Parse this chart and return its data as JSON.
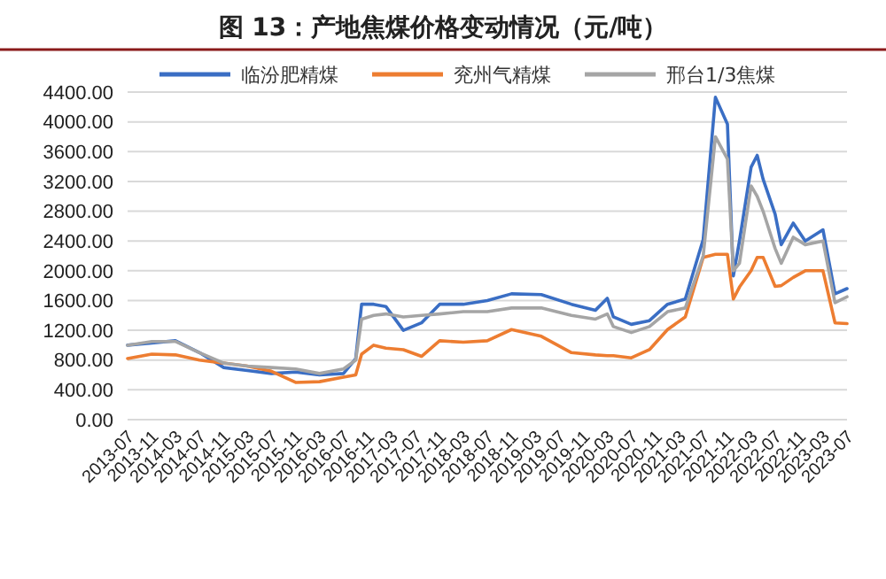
{
  "chart_data": {
    "type": "line",
    "title": "图 13：产地焦煤价格变动情况（元/吨）",
    "x": [
      "2013-07",
      "2013-11",
      "2014-03",
      "2014-07",
      "2014-11",
      "2015-03",
      "2015-07",
      "2015-11",
      "2016-03",
      "2016-07",
      "2016-09",
      "2016-10",
      "2016-12",
      "2017-02",
      "2017-05",
      "2017-08",
      "2017-11",
      "2018-03",
      "2018-07",
      "2018-11",
      "2019-04",
      "2019-09",
      "2020-01",
      "2020-03",
      "2020-04",
      "2020-07",
      "2020-10",
      "2021-01",
      "2021-04",
      "2021-07",
      "2021-09",
      "2021-11",
      "2021-12",
      "2022-01",
      "2022-03",
      "2022-04",
      "2022-05",
      "2022-07",
      "2022-08",
      "2022-10",
      "2022-12",
      "2023-03",
      "2023-05",
      "2023-07"
    ],
    "series": [
      {
        "name": "临汾肥精煤",
        "color": "#3a6ec4",
        "values": [
          1000,
          1030,
          1060,
          900,
          700,
          660,
          620,
          640,
          600,
          620,
          820,
          1550,
          1550,
          1520,
          1200,
          1300,
          1550,
          1550,
          1600,
          1690,
          1680,
          1550,
          1470,
          1630,
          1380,
          1280,
          1330,
          1550,
          1620,
          2420,
          4330,
          3970,
          1930,
          2400,
          3390,
          3550,
          3230,
          2760,
          2350,
          2640,
          2400,
          2550,
          1690,
          1760
        ]
      },
      {
        "name": "兖州气精煤",
        "color": "#ed7d31",
        "values": [
          820,
          880,
          870,
          800,
          760,
          720,
          650,
          500,
          510,
          570,
          600,
          880,
          1000,
          960,
          940,
          850,
          1060,
          1040,
          1060,
          1210,
          1120,
          900,
          870,
          860,
          860,
          830,
          940,
          1210,
          1380,
          2180,
          2220,
          2220,
          1620,
          1780,
          2000,
          2180,
          2180,
          1790,
          1800,
          1910,
          2000,
          2000,
          1300,
          1290
        ]
      },
      {
        "name": "邢台1/3焦煤",
        "color": "#a5a5a5",
        "values": [
          1000,
          1050,
          1050,
          900,
          760,
          720,
          700,
          680,
          620,
          680,
          800,
          1350,
          1400,
          1420,
          1380,
          1400,
          1420,
          1450,
          1450,
          1500,
          1500,
          1400,
          1350,
          1420,
          1250,
          1170,
          1250,
          1450,
          1500,
          2200,
          3800,
          3500,
          2000,
          2100,
          3140,
          3000,
          2800,
          2300,
          2100,
          2450,
          2350,
          2400,
          1570,
          1650
        ]
      }
    ],
    "xlim": [
      "2013-07",
      "2023-07"
    ],
    "xticks": [
      "2013-07",
      "2013-11",
      "2014-03",
      "2014-07",
      "2014-11",
      "2015-03",
      "2015-07",
      "2015-11",
      "2016-03",
      "2016-07",
      "2016-11",
      "2017-03",
      "2017-07",
      "2017-11",
      "2018-03",
      "2018-07",
      "2018-11",
      "2019-03",
      "2019-07",
      "2019-11",
      "2020-03",
      "2020-07",
      "2020-11",
      "2021-03",
      "2021-07",
      "2021-11",
      "2022-03",
      "2022-07",
      "2022-11",
      "2023-03",
      "2023-07"
    ],
    "ylim": [
      0,
      4400
    ],
    "yticks": [
      {
        "value": 0,
        "label": "0.00"
      },
      {
        "value": 400,
        "label": "400.00"
      },
      {
        "value": 800,
        "label": "800.00"
      },
      {
        "value": 1200,
        "label": "1200.00"
      },
      {
        "value": 1600,
        "label": "1600.00"
      },
      {
        "value": 2000,
        "label": "2000.00"
      },
      {
        "value": 2400,
        "label": "2400.00"
      },
      {
        "value": 2800,
        "label": "2800.00"
      },
      {
        "value": 3200,
        "label": "3200.00"
      },
      {
        "value": 3600,
        "label": "3600.00"
      },
      {
        "value": 4000,
        "label": "4000.00"
      },
      {
        "value": 4400,
        "label": "4400.00"
      }
    ],
    "grid": "y",
    "legend": "top",
    "marker": "none",
    "line_style": "solid"
  }
}
